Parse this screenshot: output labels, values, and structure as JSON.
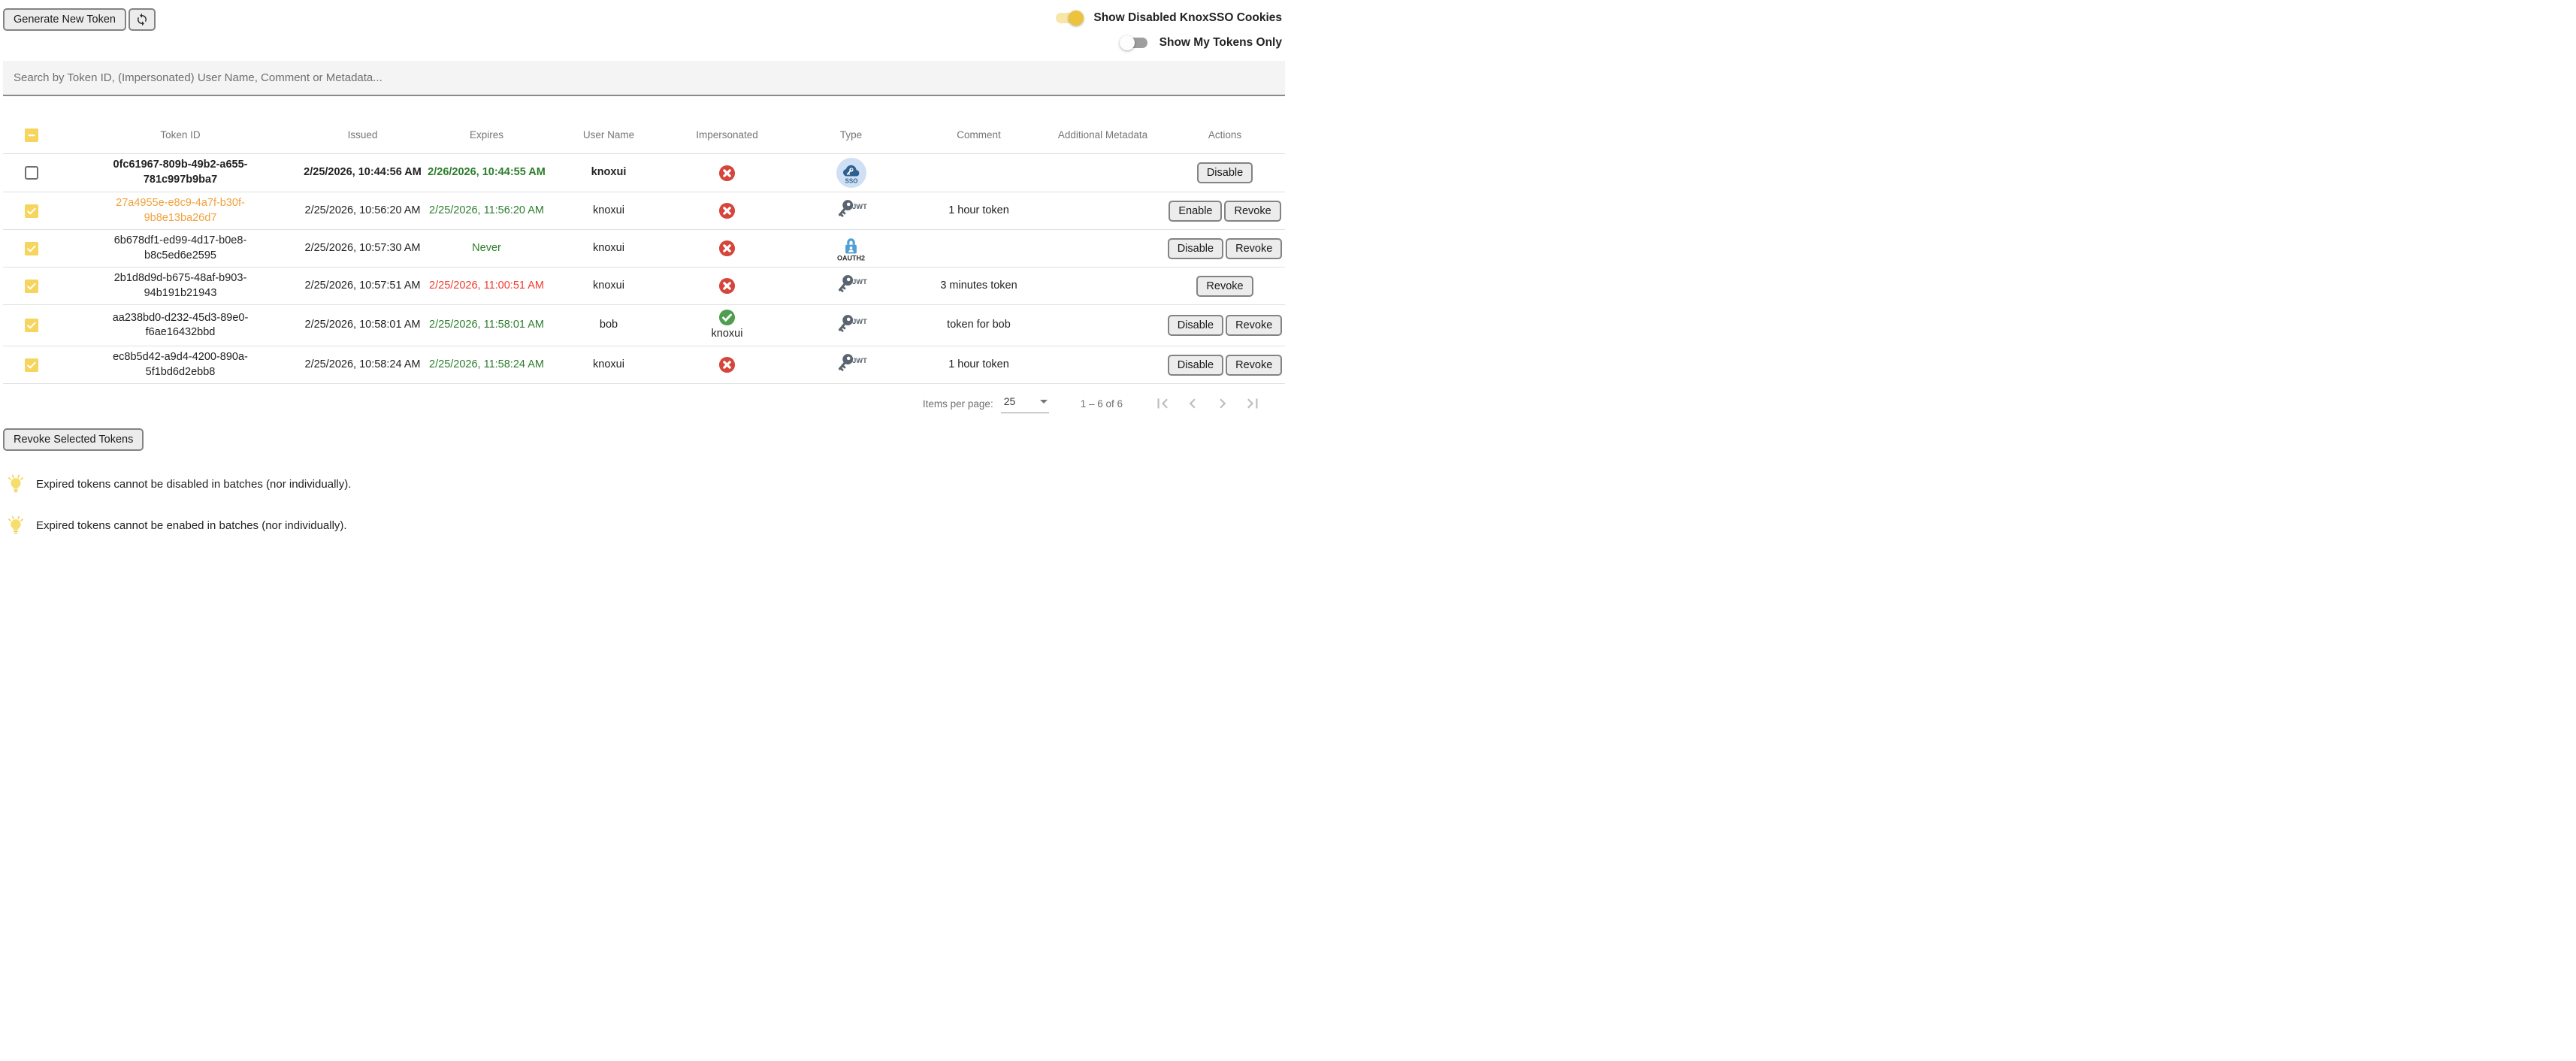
{
  "toolbar": {
    "generate_button": "Generate New Token",
    "toggles": [
      {
        "label": "Show Disabled KnoxSSO Cookies",
        "state": "on"
      },
      {
        "label": "Show My Tokens Only",
        "state": "off"
      }
    ]
  },
  "search": {
    "placeholder": "Search by Token ID, (Impersonated) User Name, Comment or Metadata..."
  },
  "table": {
    "columns": [
      "",
      "Token ID",
      "Issued",
      "Expires",
      "User Name",
      "Impersonated",
      "Type",
      "Comment",
      "Additional Metadata",
      "Actions"
    ],
    "rows": [
      {
        "selected": false,
        "bold": true,
        "token_id": "0fc61967-809b-49b2-a655-781c997b9ba7",
        "token_style": "default",
        "issued": "2/25/2026, 10:44:56 AM",
        "expires": "2/26/2026, 10:44:55 AM",
        "expires_style": "future",
        "user_name": "knoxui",
        "impersonated": false,
        "impersonated_user": "",
        "type": "sso",
        "comment": "",
        "metadata": "",
        "actions": [
          "Disable"
        ]
      },
      {
        "selected": true,
        "bold": false,
        "token_id": "27a4955e-e8c9-4a7f-b30f-9b8e13ba26d7",
        "token_style": "disabled",
        "issued": "2/25/2026, 10:56:20 AM",
        "expires": "2/25/2026, 11:56:20 AM",
        "expires_style": "future",
        "user_name": "knoxui",
        "impersonated": false,
        "impersonated_user": "",
        "type": "jwt",
        "comment": "1 hour token",
        "metadata": "",
        "actions": [
          "Enable",
          "Revoke"
        ]
      },
      {
        "selected": true,
        "bold": false,
        "token_id": "6b678df1-ed99-4d17-b0e8-b8c5ed6e2595",
        "token_style": "default",
        "issued": "2/25/2026, 10:57:30 AM",
        "expires": "Never",
        "expires_style": "future",
        "user_name": "knoxui",
        "impersonated": false,
        "impersonated_user": "",
        "type": "oauth2",
        "comment": "",
        "metadata": "",
        "actions": [
          "Disable",
          "Revoke"
        ]
      },
      {
        "selected": true,
        "bold": false,
        "token_id": "2b1d8d9d-b675-48af-b903-94b191b21943",
        "token_style": "default",
        "issued": "2/25/2026, 10:57:51 AM",
        "expires": "2/25/2026, 11:00:51 AM",
        "expires_style": "expired",
        "user_name": "knoxui",
        "impersonated": false,
        "impersonated_user": "",
        "type": "jwt",
        "comment": "3 minutes token",
        "metadata": "",
        "actions": [
          "Revoke"
        ]
      },
      {
        "selected": true,
        "bold": false,
        "token_id": "aa238bd0-d232-45d3-89e0-f6ae16432bbd",
        "token_style": "default",
        "issued": "2/25/2026, 10:58:01 AM",
        "expires": "2/25/2026, 11:58:01 AM",
        "expires_style": "future",
        "user_name": "bob",
        "impersonated": true,
        "impersonated_user": "knoxui",
        "type": "jwt",
        "comment": "token for bob",
        "metadata": "",
        "actions": [
          "Disable",
          "Revoke"
        ]
      },
      {
        "selected": true,
        "bold": false,
        "token_id": "ec8b5d42-a9d4-4200-890a-5f1bd6d2ebb8",
        "token_style": "default",
        "issued": "2/25/2026, 10:58:24 AM",
        "expires": "2/25/2026, 11:58:24 AM",
        "expires_style": "future",
        "user_name": "knoxui",
        "impersonated": false,
        "impersonated_user": "",
        "type": "jwt",
        "comment": "1 hour token",
        "metadata": "",
        "actions": [
          "Disable",
          "Revoke"
        ]
      }
    ]
  },
  "paginator": {
    "items_per_page_label": "Items per page:",
    "items_per_page": "25",
    "range": "1 – 6 of 6"
  },
  "footer": {
    "revoke_button": "Revoke Selected Tokens",
    "notes": [
      "Expired tokens cannot be disabled in batches (nor individually).",
      "Expired tokens cannot be enabed in batches (nor individually)."
    ]
  },
  "colors": {
    "accent_yellow": "#f5d55e",
    "toggle_on_thumb": "#edc23c",
    "green_expires": "#2b7d2b",
    "red_expires": "#ef3b2d",
    "orange_disabled_token": "#f0a23c",
    "red_badge": "#d6453c",
    "green_badge": "#4f9e4f",
    "jwt_gray": "#5a6470",
    "oauth2_blue": "#4d9fd6",
    "sso_blue": "#2d5f90"
  }
}
